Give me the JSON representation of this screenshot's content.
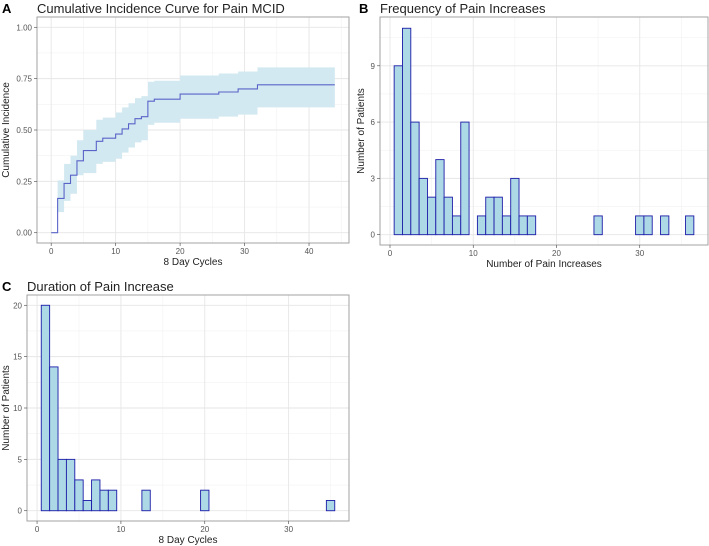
{
  "chart_data": [
    {
      "panel": "A",
      "type": "line",
      "title": "Cumulative Incidence Curve for Pain MCID",
      "xlabel": "8 Day Cycles",
      "ylabel": "Cumulative Incidence",
      "xlim": [
        -2.2,
        46.2
      ],
      "ylim": [
        -0.05,
        1.05
      ],
      "xticks": [
        0,
        10,
        20,
        30,
        40
      ],
      "xtick_labels": [
        "0",
        "10",
        "20",
        "30",
        "40"
      ],
      "yticks": [
        0,
        0.25,
        0.5,
        0.75,
        1.0
      ],
      "ytick_labels": [
        "0.00",
        "0.25",
        "0.50",
        "0.75",
        "1.00"
      ],
      "grid": true,
      "step": true,
      "x": [
        0,
        1,
        2,
        3,
        4,
        5,
        7,
        8,
        10,
        11,
        12,
        13,
        14,
        15,
        16,
        20,
        26,
        29,
        32,
        44
      ],
      "y": [
        0,
        0.167,
        0.24,
        0.28,
        0.35,
        0.4,
        0.445,
        0.46,
        0.48,
        0.505,
        0.53,
        0.555,
        0.565,
        0.64,
        0.65,
        0.675,
        0.685,
        0.7,
        0.72,
        0.72
      ],
      "ci_lower": [
        0,
        0.1,
        0.155,
        0.19,
        0.28,
        0.29,
        0.335,
        0.345,
        0.36,
        0.39,
        0.415,
        0.44,
        0.45,
        0.525,
        0.535,
        0.555,
        0.565,
        0.575,
        0.61,
        0.61
      ],
      "ci_upper": [
        0,
        0.255,
        0.335,
        0.375,
        0.45,
        0.5,
        0.55,
        0.56,
        0.585,
        0.61,
        0.63,
        0.655,
        0.665,
        0.735,
        0.74,
        0.765,
        0.775,
        0.785,
        0.805,
        0.805
      ],
      "colors": {
        "line": "#5a64c8",
        "ribbon": "#d3e9f1"
      }
    },
    {
      "panel": "B",
      "type": "bar",
      "title": "Frequency of Pain Increases",
      "xlabel": "Number of Pain Increases",
      "ylabel": "Number of Patients",
      "xlim": [
        -1.2,
        38.2
      ],
      "ylim": [
        -0.55,
        11.6
      ],
      "xticks": [
        0,
        10,
        20,
        30
      ],
      "xtick_labels": [
        "0",
        "10",
        "20",
        "30"
      ],
      "yticks": [
        0,
        3,
        6,
        9
      ],
      "ytick_labels": [
        "0",
        "3",
        "6",
        "9"
      ],
      "grid": true,
      "x": [
        1,
        2,
        3,
        4,
        5,
        6,
        7,
        8,
        9,
        11,
        12,
        13,
        14,
        15,
        16,
        17,
        25,
        30,
        31,
        33,
        36
      ],
      "values": [
        9,
        11,
        6,
        3,
        2,
        4,
        2,
        1,
        6,
        1,
        2,
        2,
        1,
        3,
        1,
        1,
        1,
        1,
        1,
        1,
        1
      ],
      "colors": {
        "fill": "#add8e6",
        "stroke": "#1c1ca8"
      }
    },
    {
      "panel": "C",
      "type": "bar",
      "title": "Duration of Pain Increase",
      "xlabel": "8 Day Cycles",
      "ylabel": "Number of Patients",
      "xlim": [
        -1.2,
        37.2
      ],
      "ylim": [
        -1,
        21
      ],
      "xticks": [
        0,
        10,
        20,
        30
      ],
      "xtick_labels": [
        "0",
        "10",
        "20",
        "30"
      ],
      "yticks": [
        0,
        5,
        10,
        15,
        20
      ],
      "ytick_labels": [
        "0",
        "5",
        "10",
        "15",
        "20"
      ],
      "grid": true,
      "x": [
        1,
        2,
        3,
        4,
        5,
        6,
        7,
        8,
        9,
        13,
        20,
        35
      ],
      "values": [
        20,
        14,
        5,
        5,
        3,
        1,
        3,
        2,
        2,
        2,
        2,
        1
      ],
      "colors": {
        "fill": "#add8e6",
        "stroke": "#1c1ca8"
      }
    }
  ]
}
